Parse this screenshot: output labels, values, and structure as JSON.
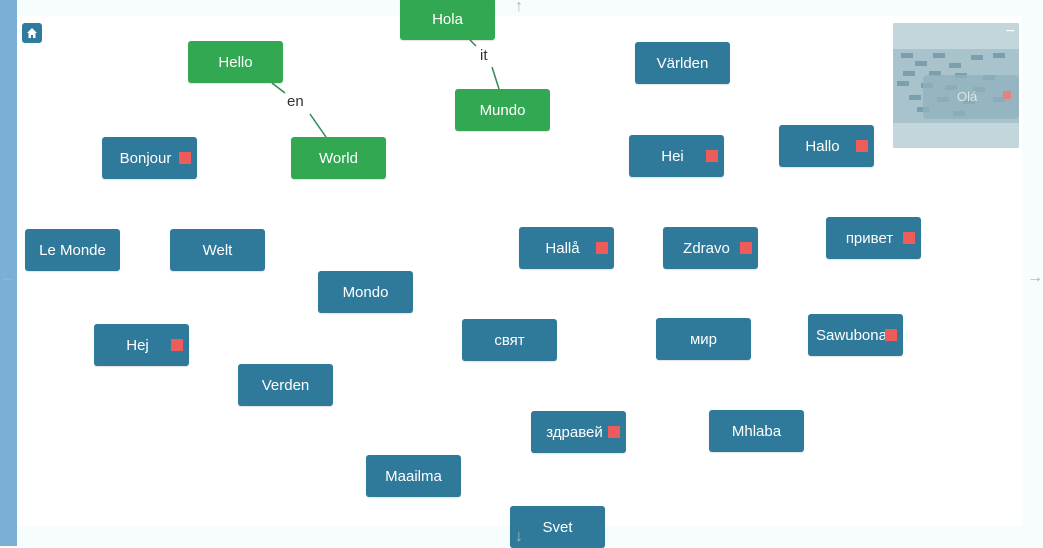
{
  "colors": {
    "node": "#2f7a9a",
    "root": "#33a852",
    "marker": "#ee5b5b",
    "canvas": "#ffffff"
  },
  "icons": {
    "home": "home-icon",
    "left": "arrow-left-icon",
    "right": "arrow-right-icon",
    "up": "arrow-up-icon",
    "down": "arrow-down-icon"
  },
  "arrows": {
    "up": "↑",
    "down": "↓",
    "left": "←",
    "right": "→"
  },
  "edges": {
    "en": "en",
    "it": "it"
  },
  "minimap": {
    "collapse": "−",
    "label": "Olá"
  },
  "nodes": {
    "hola": "Hola",
    "hello": "Hello",
    "world": "World",
    "mundo_it": "Mundo",
    "varlden": "Världen",
    "bonjour": "Bonjour",
    "hei": "Hei",
    "hallo": "Hallo",
    "le_monde": "Le Monde",
    "welt": "Welt",
    "halla": "Hallå",
    "zdravo": "Zdravo",
    "privet": "привет",
    "mondo": "Mondo",
    "hej": "Hej",
    "svyat": "свят",
    "mir": "мир",
    "sawubona": "Sawubona",
    "verden": "Verden",
    "zdravei": "здравей",
    "mhlaba": "Mhlaba",
    "maailma": "Maailma",
    "svet": "Svet"
  }
}
